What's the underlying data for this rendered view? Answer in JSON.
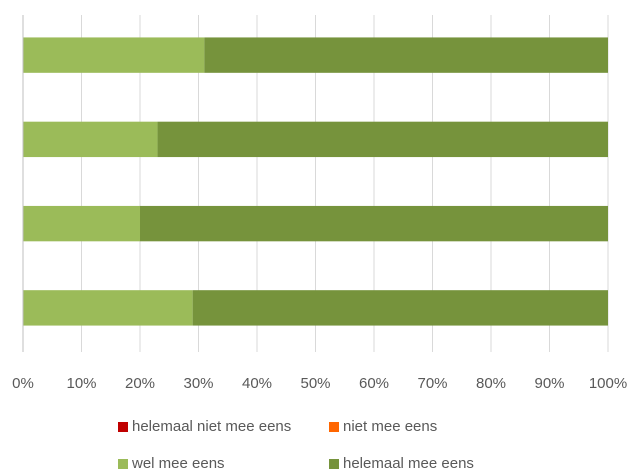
{
  "chart_data": {
    "type": "bar",
    "orientation": "horizontal",
    "stacked": "percent",
    "title": "",
    "xlabel": "",
    "ylabel": "",
    "xlim": [
      0,
      100
    ],
    "x_ticks": [
      "0%",
      "10%",
      "20%",
      "30%",
      "40%",
      "50%",
      "60%",
      "70%",
      "80%",
      "90%",
      "100%"
    ],
    "grid": true,
    "legend_position": "bottom",
    "categories": [
      "",
      "",
      "",
      ""
    ],
    "series": [
      {
        "name": "helemaal niet mee eens",
        "color": "#c00000",
        "values": [
          0,
          0,
          0,
          0
        ]
      },
      {
        "name": "niet mee eens",
        "color": "#ff6600",
        "values": [
          0,
          0,
          0,
          0
        ]
      },
      {
        "name": "wel mee eens",
        "color": "#9bbb59",
        "values": [
          31,
          23,
          20,
          29
        ]
      },
      {
        "name": "helemaal mee eens",
        "color": "#76933c",
        "values": [
          69,
          77,
          80,
          71
        ]
      }
    ]
  }
}
